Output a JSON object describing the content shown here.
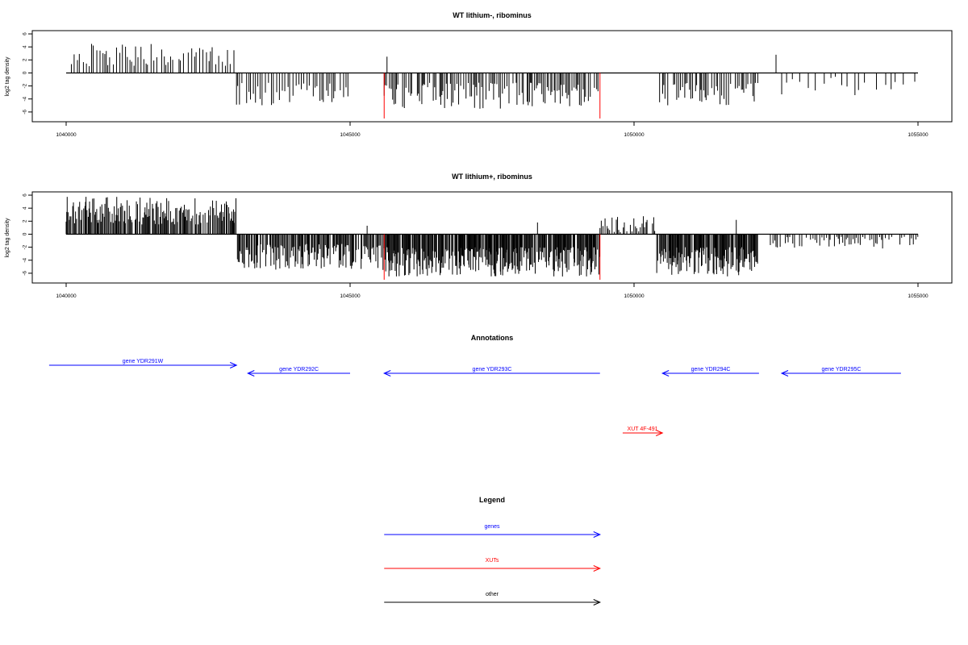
{
  "panels": [
    {
      "title": "WT lithium-, ribominus",
      "ylabel": "log2 tag density",
      "y_ticks": [
        "6",
        "4",
        "2",
        "0",
        "-2",
        "-4",
        "-6"
      ],
      "x_ticks": [
        "1040000",
        "1045000",
        "1050000",
        "1055000"
      ]
    },
    {
      "title": "WT lithium+, ribominus",
      "ylabel": "log2 tag density",
      "y_ticks": [
        "6",
        "4",
        "2",
        "0",
        "-2",
        "-4",
        "-6"
      ],
      "x_ticks": [
        "1040000",
        "1045000",
        "1050000",
        "1055000"
      ]
    }
  ],
  "annotations": {
    "title": "Annotations",
    "genes": [
      {
        "label": "gene YDR291W",
        "start": 1039700,
        "end": 1043000,
        "strand": "+"
      },
      {
        "label": "gene YDR292C",
        "start": 1043200,
        "end": 1045000,
        "strand": "-"
      },
      {
        "label": "gene YDR293C",
        "start": 1045600,
        "end": 1049400,
        "strand": "-"
      },
      {
        "label": "gene YDR294C",
        "start": 1050500,
        "end": 1052200,
        "strand": "-"
      },
      {
        "label": "gene YDR295C",
        "start": 1052600,
        "end": 1054700,
        "strand": "-"
      }
    ],
    "xuts": [
      {
        "label": "XUT 4F-491",
        "start": 1049800,
        "end": 1050500,
        "strand": "+"
      }
    ]
  },
  "legend": {
    "title": "Legend",
    "items": [
      {
        "label": "genes",
        "color": "#0000ff"
      },
      {
        "label": "XUTs",
        "color": "#ff0000"
      },
      {
        "label": "other",
        "color": "#000000"
      }
    ]
  },
  "colors": {
    "gene": "#0000ff",
    "xut": "#ff0000",
    "other": "#000000",
    "marker": "#ff0000"
  },
  "chart_data": [
    {
      "type": "bar",
      "title": "WT lithium-, ribominus",
      "xlabel": "",
      "ylabel": "log2 tag density",
      "xlim": [
        1040000,
        1055000
      ],
      "ylim": [
        -7.5,
        6.5
      ],
      "markers_x": [
        1045600,
        1049400
      ],
      "regions": [
        {
          "start": 1040000,
          "end": 1043000,
          "sign": 1,
          "min": 1,
          "max": 4.5,
          "step": 45
        },
        {
          "start": 1043000,
          "end": 1045000,
          "sign": -1,
          "min": 1.5,
          "max": 5,
          "step": 40
        },
        {
          "start": 1045600,
          "end": 1049400,
          "sign": -1,
          "min": 1.5,
          "max": 5.5,
          "step": 28
        },
        {
          "start": 1050450,
          "end": 1052200,
          "sign": -1,
          "min": 1.5,
          "max": 5,
          "step": 30
        },
        {
          "start": 1052600,
          "end": 1055000,
          "sign": -1,
          "min": 0.5,
          "max": 3.5,
          "step": 110
        }
      ],
      "spikes": [
        {
          "x": 1045650,
          "y": 2.5
        },
        {
          "x": 1052500,
          "y": 2.8
        }
      ]
    },
    {
      "type": "bar",
      "title": "WT lithium+, ribominus",
      "xlabel": "",
      "ylabel": "log2 tag density",
      "xlim": [
        1040000,
        1055000
      ],
      "ylim": [
        -7.5,
        6.5
      ],
      "markers_x": [
        1045600,
        1049400
      ],
      "regions": [
        {
          "start": 1040000,
          "end": 1043000,
          "sign": 1,
          "min": 1.5,
          "max": 5.8,
          "step": 16
        },
        {
          "start": 1043000,
          "end": 1045600,
          "sign": -1,
          "min": 1.5,
          "max": 5.5,
          "step": 16
        },
        {
          "start": 1045600,
          "end": 1049400,
          "sign": -1,
          "min": 2,
          "max": 6.5,
          "step": 12
        },
        {
          "start": 1049400,
          "end": 1050400,
          "sign": 1,
          "min": 0.3,
          "max": 3,
          "step": 30
        },
        {
          "start": 1050400,
          "end": 1052200,
          "sign": -1,
          "min": 2,
          "max": 6.5,
          "step": 12
        },
        {
          "start": 1052400,
          "end": 1055000,
          "sign": -1,
          "min": 0.4,
          "max": 2.2,
          "step": 35
        }
      ],
      "spikes": [
        {
          "x": 1045300,
          "y": 1.3
        },
        {
          "x": 1048300,
          "y": 1.8
        },
        {
          "x": 1051800,
          "y": 2.2
        }
      ]
    }
  ]
}
